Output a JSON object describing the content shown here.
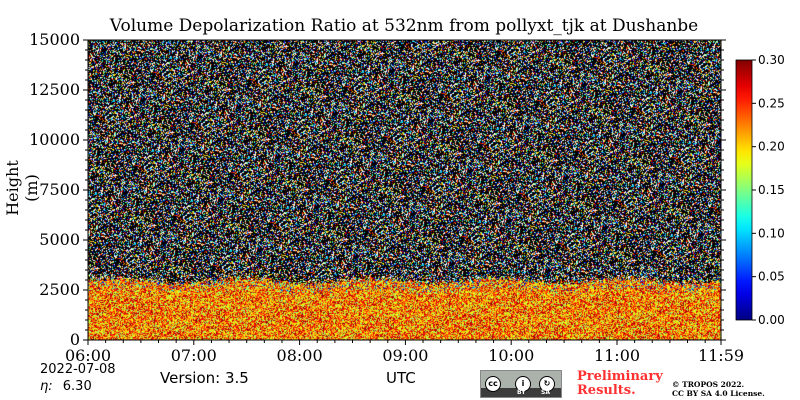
{
  "chart_data": {
    "type": "heatmap",
    "title": "Volume Depolarization Ratio at 532nm from pollyxt_tjk at Dushanbe",
    "ylabel": "Height (m)",
    "xlabel": "UTC",
    "x_ticks": [
      "06:00",
      "07:00",
      "08:00",
      "09:00",
      "10:00",
      "11:00",
      "11:59"
    ],
    "x_range_hours": [
      6.0,
      11.983
    ],
    "y_ticks": [
      0,
      2500,
      5000,
      7500,
      10000,
      12500,
      15000
    ],
    "y_tick_labels": [
      "0",
      "2500",
      "5000",
      "7500",
      "10000",
      "12500",
      "15000"
    ],
    "ylim": [
      0,
      15000
    ],
    "colorbar": {
      "ticks": [
        0.0,
        0.05,
        0.1,
        0.15,
        0.2,
        0.25,
        0.3
      ],
      "tick_labels": [
        "0.00",
        "0.05",
        "0.10",
        "0.15",
        "0.20",
        "0.25",
        "0.30"
      ],
      "range": [
        0.0,
        0.3
      ],
      "colormap": "jet",
      "position": "right"
    },
    "layers": {
      "dust_layer_top_m": 3000,
      "dust_layer_value_range": [
        0.15,
        0.3
      ],
      "noise_region_bottom_m": 3000,
      "noise_color": "#000000"
    }
  },
  "footer": {
    "date": "2022-07-08",
    "eta_symbol": "η:",
    "eta_value": "6.30",
    "version": "Version: 3.5",
    "time_axis_label": "UTC",
    "preliminary_line1": "Preliminary",
    "preliminary_line2": "Results.",
    "copyright_line1": "© TROPOS 2022.",
    "copyright_line2": "CC BY SA 4.0 License.",
    "license_icon_labels": [
      "BY",
      "SA"
    ],
    "license_circle_glyphs": [
      "cc",
      "i",
      "↻"
    ]
  }
}
